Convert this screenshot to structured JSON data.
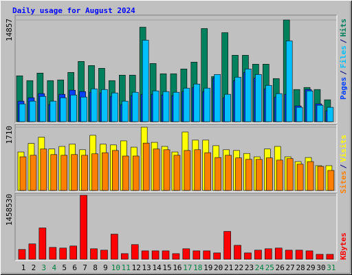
{
  "title": "Daily usage for August 2024",
  "legend_separator": "/",
  "chart_data": [
    {
      "type": "bar",
      "ylim": [
        0,
        14857
      ],
      "yticks": [
        14857
      ],
      "series": [
        {
          "name": "Pages",
          "color": "#0040ff",
          "values": [
            3000,
            3500,
            4100,
            2500,
            4000,
            4600,
            4400,
            4300,
            4200,
            3700,
            2500,
            3800,
            4000,
            4000,
            3900,
            3800,
            4400,
            5000,
            4400,
            6400,
            3500,
            6000,
            7200,
            6400,
            4800,
            3600,
            4000,
            2300,
            4700,
            2600,
            1600
          ]
        },
        {
          "name": "Files",
          "color": "#00c0ff",
          "values": [
            2600,
            3000,
            3700,
            3000,
            3500,
            3900,
            3600,
            4800,
            4700,
            4200,
            3000,
            4300,
            11900,
            4500,
            4400,
            4300,
            4900,
            5500,
            4900,
            6900,
            4000,
            6500,
            7700,
            6900,
            5300,
            4100,
            11800,
            2100,
            4500,
            2400,
            2100
          ]
        },
        {
          "name": "Hits",
          "color": "#00805c",
          "values": [
            6700,
            6000,
            7100,
            6000,
            6100,
            7200,
            8800,
            8200,
            7800,
            6000,
            6800,
            6800,
            13800,
            8500,
            7000,
            7000,
            7700,
            8700,
            13600,
            6600,
            13000,
            9700,
            9700,
            8400,
            8400,
            6300,
            14857,
            4700,
            5000,
            4700,
            3200
          ]
        }
      ]
    },
    {
      "type": "bar",
      "ylim": [
        0,
        1710
      ],
      "yticks": [
        1710
      ],
      "series": [
        {
          "name": "Sites",
          "color": "#ff8000",
          "values": [
            910,
            950,
            1120,
            970,
            950,
            970,
            950,
            990,
            1020,
            1080,
            930,
            930,
            1280,
            1120,
            1100,
            950,
            1080,
            1100,
            1020,
            890,
            950,
            880,
            840,
            840,
            880,
            820,
            860,
            710,
            780,
            650,
            540
          ]
        },
        {
          "name": "Visits",
          "color": "#ffff00",
          "values": [
            1040,
            1270,
            1440,
            1120,
            1190,
            1250,
            1100,
            1490,
            1250,
            1230,
            1340,
            1170,
            1710,
            1300,
            1190,
            1040,
            1580,
            1360,
            1360,
            1210,
            1100,
            1080,
            1000,
            910,
            1120,
            1190,
            910,
            780,
            890,
            670,
            670
          ]
        }
      ]
    },
    {
      "type": "bar",
      "ylim": [
        0,
        1458530
      ],
      "yticks": [
        1458530
      ],
      "categories": [
        "1",
        "2",
        "3",
        "4",
        "5",
        "6",
        "7",
        "8",
        "9",
        "10",
        "11",
        "12",
        "13",
        "14",
        "15",
        "16",
        "17",
        "18",
        "19",
        "20",
        "21",
        "22",
        "23",
        "24",
        "25",
        "26",
        "27",
        "28",
        "29",
        "30",
        "31"
      ],
      "category_colors": [
        "#000000",
        "#000000",
        "#008040",
        "#008040",
        "#000000",
        "#000000",
        "#000000",
        "#000000",
        "#000000",
        "#008040",
        "#008040",
        "#000000",
        "#000000",
        "#000000",
        "#000000",
        "#000000",
        "#008040",
        "#008040",
        "#000000",
        "#000000",
        "#000000",
        "#000000",
        "#000000",
        "#008040",
        "#008040",
        "#000000",
        "#000000",
        "#000000",
        "#000000",
        "#000000",
        "#008040"
      ],
      "series": [
        {
          "name": "KBytes",
          "color": "#ff0000",
          "values": [
            222000,
            349000,
            713000,
            269000,
            254000,
            301000,
            1458530,
            238000,
            206000,
            571000,
            127000,
            333000,
            190000,
            190000,
            190000,
            127000,
            238000,
            190000,
            190000,
            143000,
            634000,
            317000,
            143000,
            206000,
            238000,
            254000,
            206000,
            206000,
            190000,
            111000,
            111000
          ]
        }
      ]
    }
  ]
}
